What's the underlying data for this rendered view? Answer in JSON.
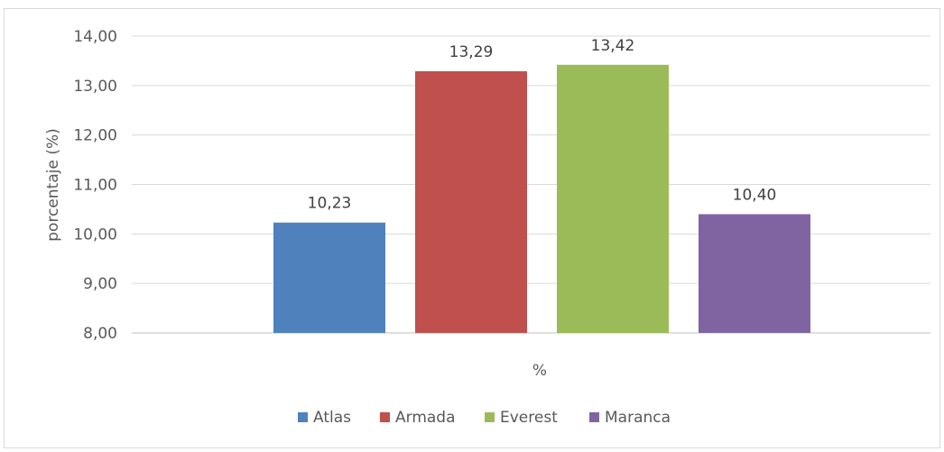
{
  "chart_data": {
    "type": "bar",
    "categories": [
      "%"
    ],
    "xlabel": "%",
    "ylabel": "porcentaje (%)",
    "ylim": [
      8,
      14
    ],
    "ytick_step": 1,
    "ytick_labels": [
      "8,00",
      "9,00",
      "10,00",
      "11,00",
      "12,00",
      "13,00",
      "14,00"
    ],
    "grid": true,
    "legend_position": "bottom",
    "series": [
      {
        "name": "Atlas",
        "values": [
          10.23
        ],
        "label": "10,23",
        "color": "#4f81bd"
      },
      {
        "name": "Armada",
        "values": [
          13.29
        ],
        "label": "13,29",
        "color": "#c0504d"
      },
      {
        "name": "Everest",
        "values": [
          13.42
        ],
        "label": "13,42",
        "color": "#9bbb59"
      },
      {
        "name": "Maranca",
        "values": [
          10.4
        ],
        "label": "10,40",
        "color": "#8064a2"
      }
    ]
  }
}
